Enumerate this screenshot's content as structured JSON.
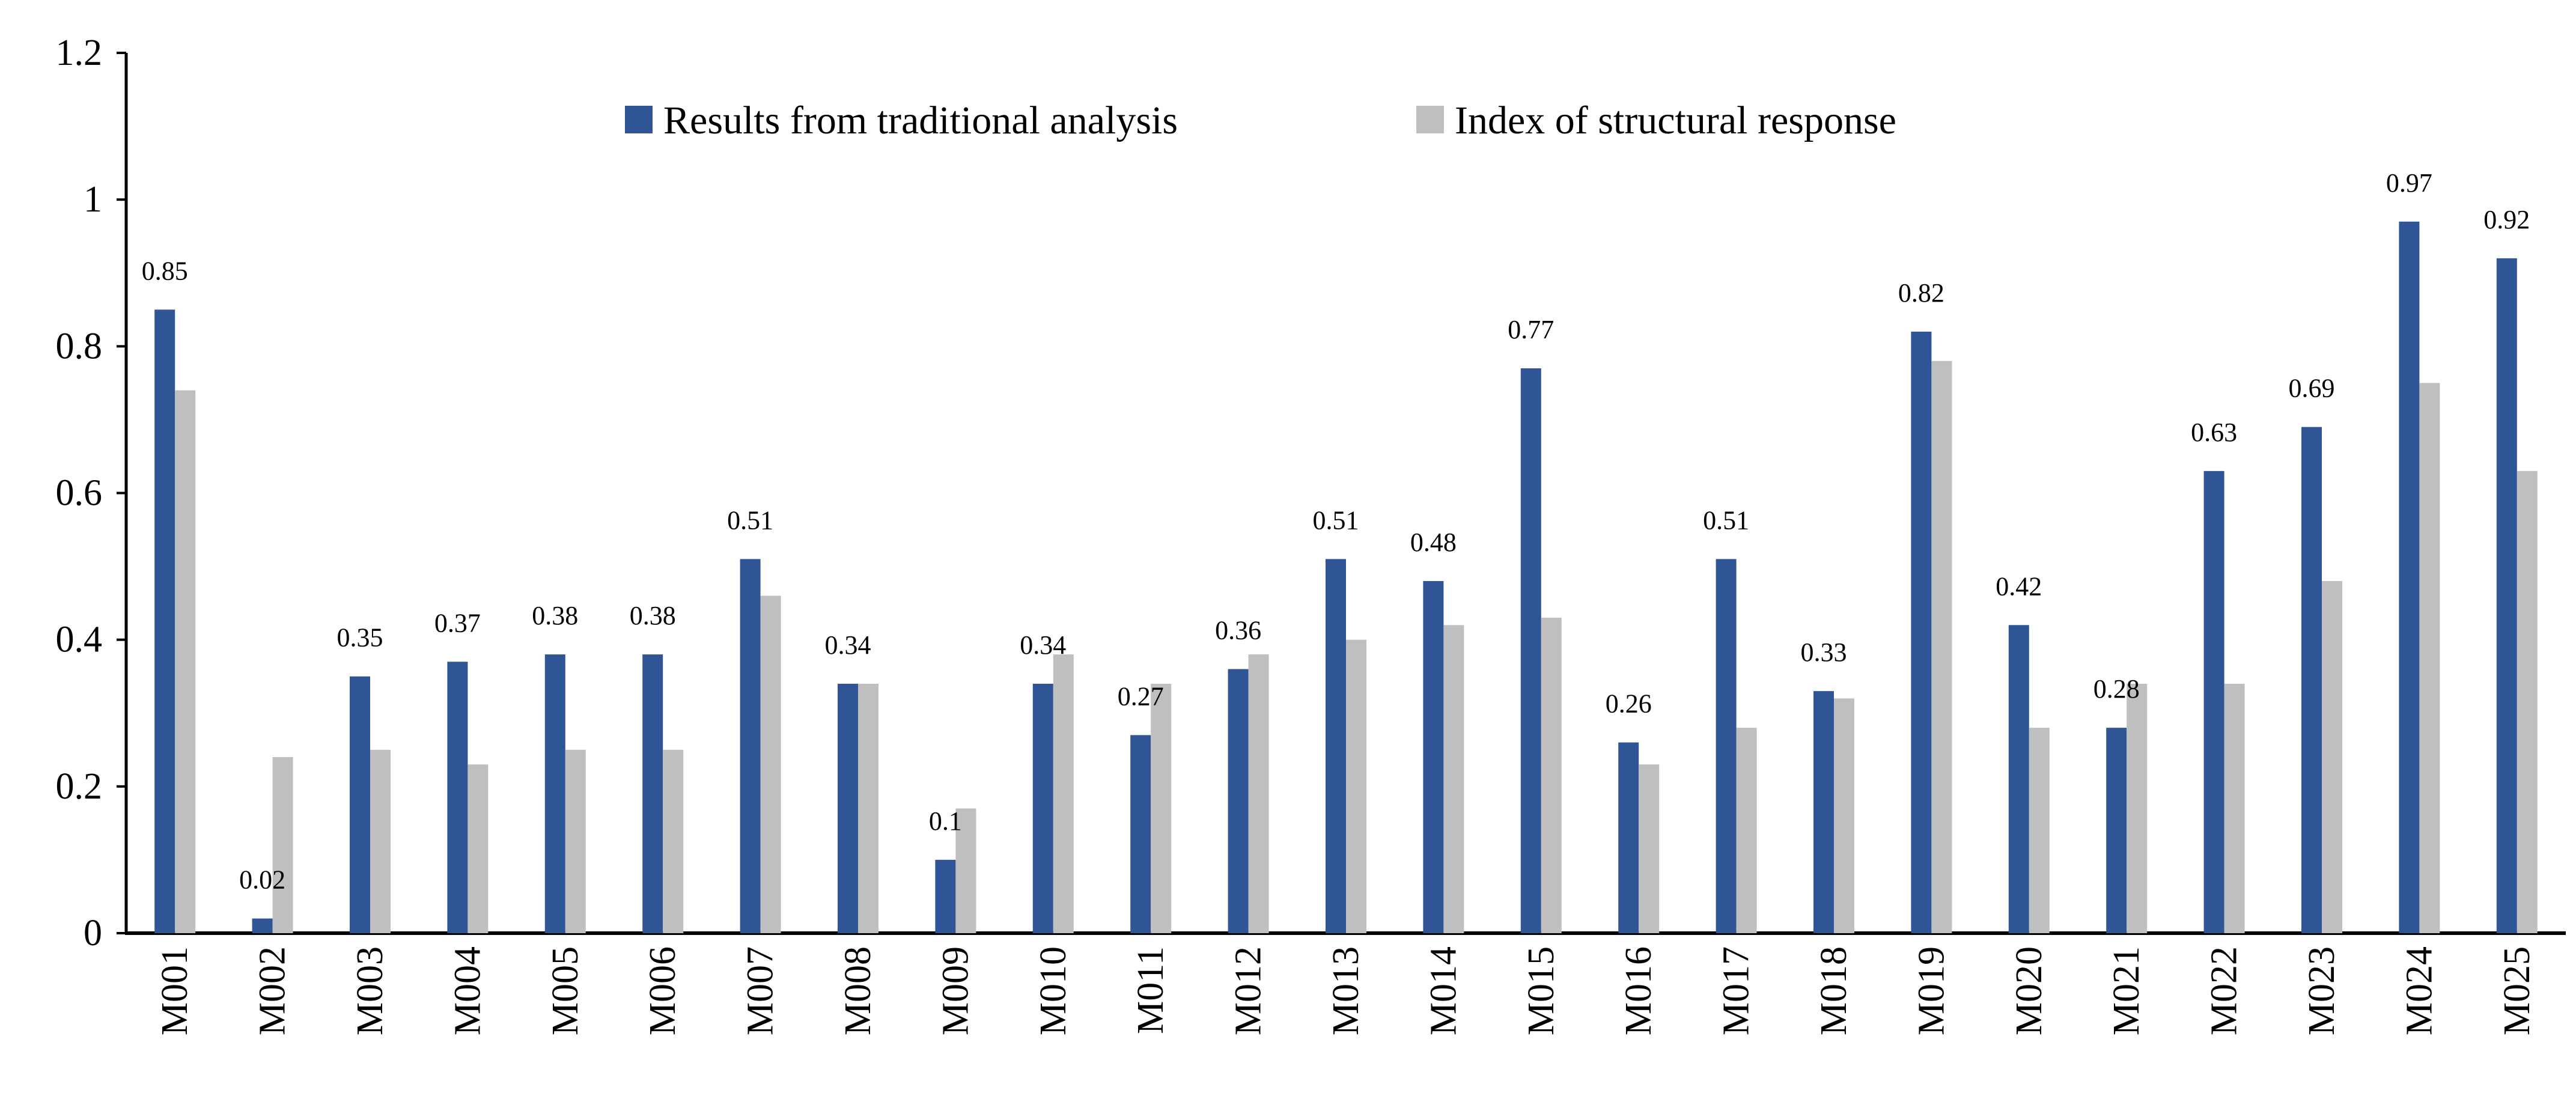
{
  "chart_data": {
    "type": "bar",
    "title": "",
    "xlabel": "",
    "ylabel": "",
    "ylim": [
      0,
      1.2
    ],
    "yticks": [
      {
        "value": 0,
        "label": "0"
      },
      {
        "value": 0.2,
        "label": "0.2"
      },
      {
        "value": 0.4,
        "label": "0.4"
      },
      {
        "value": 0.6,
        "label": "0.6"
      },
      {
        "value": 0.8,
        "label": "0.8"
      },
      {
        "value": 1.0,
        "label": "1"
      },
      {
        "value": 1.2,
        "label": "1.2"
      }
    ],
    "grid": false,
    "legend_position": "top",
    "categories": [
      "M001",
      "M002",
      "M003",
      "M004",
      "M005",
      "M006",
      "M007",
      "M008",
      "M009",
      "M010",
      "M011",
      "M012",
      "M013",
      "M014",
      "M015",
      "M016",
      "M017",
      "M018",
      "M019",
      "M020",
      "M021",
      "M022",
      "M023",
      "M024",
      "M025"
    ],
    "series": [
      {
        "name": "Results from traditional analysis",
        "color": "#2F5597",
        "values": [
          0.85,
          0.02,
          0.35,
          0.37,
          0.38,
          0.38,
          0.51,
          0.34,
          0.1,
          0.34,
          0.27,
          0.36,
          0.51,
          0.48,
          0.77,
          0.26,
          0.51,
          0.33,
          0.82,
          0.42,
          0.28,
          0.63,
          0.69,
          0.97,
          0.92
        ],
        "data_labels": [
          "0.85",
          "0.02",
          "0.35",
          "0.37",
          "0.38",
          "0.38",
          "0.51",
          "0.34",
          "0.1",
          "0.34",
          "0.27",
          "0.36",
          "0.51",
          "0.48",
          "0.77",
          "0.26",
          "0.51",
          "0.33",
          "0.82",
          "0.42",
          "0.28",
          "0.63",
          "0.69",
          "0.97",
          "0.92"
        ]
      },
      {
        "name": "Index of structural response",
        "color": "#BFBFBF",
        "values": [
          0.74,
          0.24,
          0.25,
          0.23,
          0.25,
          0.25,
          0.46,
          0.34,
          0.17,
          0.38,
          0.34,
          0.38,
          0.4,
          0.42,
          0.43,
          0.23,
          0.28,
          0.32,
          0.78,
          0.28,
          0.34,
          0.34,
          0.48,
          0.75,
          0.63
        ]
      }
    ]
  }
}
